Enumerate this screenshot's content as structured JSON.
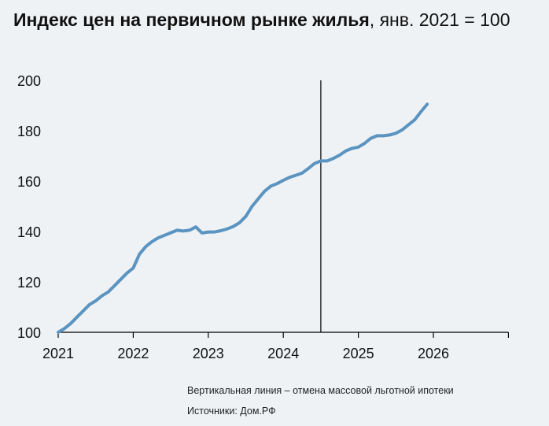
{
  "chart_data": {
    "type": "line",
    "title_bold": "Индекс цен на первичном рынке жилья",
    "title_rest": ", янв. 2021 = 100",
    "xlabel": "",
    "ylabel": "",
    "xlim": [
      "2021-01",
      "2027-01"
    ],
    "ylim": [
      100,
      200
    ],
    "x_ticks": [
      "2021",
      "2022",
      "2023",
      "2024",
      "2025",
      "2026"
    ],
    "y_ticks": [
      "100",
      "120",
      "140",
      "160",
      "180",
      "200"
    ],
    "grid": false,
    "line_color": "#5b94c0",
    "vertical_line": {
      "x": "2024-07",
      "color": "#000000"
    },
    "series": [
      {
        "x": [
          "2021-01",
          "2021-02",
          "2021-03",
          "2021-04",
          "2021-05",
          "2021-06",
          "2021-07",
          "2021-08",
          "2021-09",
          "2021-10",
          "2021-11",
          "2021-12",
          "2022-01",
          "2022-02",
          "2022-03",
          "2022-04",
          "2022-05",
          "2022-06",
          "2022-07",
          "2022-08",
          "2022-09",
          "2022-10",
          "2022-11",
          "2022-12",
          "2023-01",
          "2023-02",
          "2023-03",
          "2023-04",
          "2023-05",
          "2023-06",
          "2023-07",
          "2023-08",
          "2023-09",
          "2023-10",
          "2023-11",
          "2023-12",
          "2024-01",
          "2024-02",
          "2024-03",
          "2024-04",
          "2024-05",
          "2024-06",
          "2024-07",
          "2024-08",
          "2024-09",
          "2024-10",
          "2024-11",
          "2024-12",
          "2025-01",
          "2025-02",
          "2025-03",
          "2025-04",
          "2025-05",
          "2025-06",
          "2025-07",
          "2025-08",
          "2025-09",
          "2025-10",
          "2025-11",
          "2025-12"
        ],
        "values": [
          100,
          101.5,
          103.5,
          106,
          108.5,
          111,
          112.5,
          114.5,
          116,
          118.5,
          121,
          123.5,
          125.5,
          131,
          134,
          136,
          137.5,
          138.5,
          139.5,
          140.5,
          140.2,
          140.5,
          141.8,
          139.4,
          139.8,
          139.8,
          140.3,
          141,
          142,
          143.5,
          146,
          150,
          153,
          156,
          158,
          159,
          160.3,
          161.5,
          162.3,
          163.2,
          165,
          167,
          168,
          168,
          169,
          170.3,
          172,
          173,
          173.5,
          175,
          177,
          178,
          178,
          178.3,
          179,
          180.3,
          182.3,
          184.3,
          187.5,
          190.5
        ]
      }
    ]
  },
  "notes": {
    "vertical_line": "Вертикальная линия – отмена массовой льготной ипотеки",
    "source": "Источники: Дом.РФ"
  }
}
